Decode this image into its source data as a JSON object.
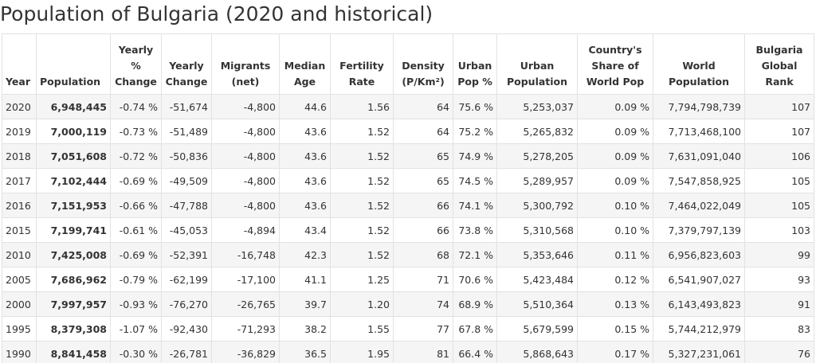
{
  "page": {
    "title": "Population of Bulgaria (2020 and historical)"
  },
  "table": {
    "headers": [
      {
        "key": "year",
        "lines": [
          "Year"
        ]
      },
      {
        "key": "population",
        "lines": [
          "Population"
        ]
      },
      {
        "key": "yearly_pct_change",
        "lines": [
          "Yearly",
          "%",
          "Change"
        ]
      },
      {
        "key": "yearly_change",
        "lines": [
          "Yearly",
          "Change"
        ]
      },
      {
        "key": "migrants",
        "lines": [
          "Migrants",
          "(net)"
        ]
      },
      {
        "key": "median_age",
        "lines": [
          "Median",
          "Age"
        ]
      },
      {
        "key": "fertility_rate",
        "lines": [
          "Fertility",
          "Rate"
        ]
      },
      {
        "key": "density",
        "lines": [
          "Density",
          "(P/Km²)"
        ]
      },
      {
        "key": "urban_pop_pct",
        "lines": [
          "Urban",
          "Pop %"
        ]
      },
      {
        "key": "urban_population",
        "lines": [
          "Urban",
          "Population"
        ]
      },
      {
        "key": "world_share",
        "lines": [
          "Country's",
          "Share of",
          "World Pop"
        ]
      },
      {
        "key": "world_population",
        "lines": [
          "World",
          "Population"
        ]
      },
      {
        "key": "global_rank",
        "lines": [
          "Bulgaria",
          "Global",
          "Rank"
        ]
      }
    ],
    "rows": [
      [
        "2020",
        "6,948,445",
        "-0.74 %",
        "-51,674",
        "-4,800",
        "44.6",
        "1.56",
        "64",
        "75.6 %",
        "5,253,037",
        "0.09 %",
        "7,794,798,739",
        "107"
      ],
      [
        "2019",
        "7,000,119",
        "-0.73 %",
        "-51,489",
        "-4,800",
        "43.6",
        "1.52",
        "64",
        "75.2 %",
        "5,265,832",
        "0.09 %",
        "7,713,468,100",
        "107"
      ],
      [
        "2018",
        "7,051,608",
        "-0.72 %",
        "-50,836",
        "-4,800",
        "43.6",
        "1.52",
        "65",
        "74.9 %",
        "5,278,205",
        "0.09 %",
        "7,631,091,040",
        "106"
      ],
      [
        "2017",
        "7,102,444",
        "-0.69 %",
        "-49,509",
        "-4,800",
        "43.6",
        "1.52",
        "65",
        "74.5 %",
        "5,289,957",
        "0.09 %",
        "7,547,858,925",
        "105"
      ],
      [
        "2016",
        "7,151,953",
        "-0.66 %",
        "-47,788",
        "-4,800",
        "43.6",
        "1.52",
        "66",
        "74.1 %",
        "5,300,792",
        "0.10 %",
        "7,464,022,049",
        "105"
      ],
      [
        "2015",
        "7,199,741",
        "-0.61 %",
        "-45,053",
        "-4,894",
        "43.4",
        "1.52",
        "66",
        "73.8 %",
        "5,310,568",
        "0.10 %",
        "7,379,797,139",
        "103"
      ],
      [
        "2010",
        "7,425,008",
        "-0.69 %",
        "-52,391",
        "-16,748",
        "42.3",
        "1.52",
        "68",
        "72.1 %",
        "5,353,646",
        "0.11 %",
        "6,956,823,603",
        "99"
      ],
      [
        "2005",
        "7,686,962",
        "-0.79 %",
        "-62,199",
        "-17,100",
        "41.1",
        "1.25",
        "71",
        "70.6 %",
        "5,423,484",
        "0.12 %",
        "6,541,907,027",
        "93"
      ],
      [
        "2000",
        "7,997,957",
        "-0.93 %",
        "-76,270",
        "-26,765",
        "39.7",
        "1.20",
        "74",
        "68.9 %",
        "5,510,364",
        "0.13 %",
        "6,143,493,823",
        "91"
      ],
      [
        "1995",
        "8,379,308",
        "-1.07 %",
        "-92,430",
        "-71,293",
        "38.2",
        "1.55",
        "77",
        "67.8 %",
        "5,679,599",
        "0.15 %",
        "5,744,212,979",
        "83"
      ],
      [
        "1990",
        "8,841,458",
        "-0.30 %",
        "-26,781",
        "-36,829",
        "36.5",
        "1.95",
        "81",
        "66.4 %",
        "5,868,643",
        "0.17 %",
        "5,327,231,061",
        "76"
      ]
    ]
  }
}
